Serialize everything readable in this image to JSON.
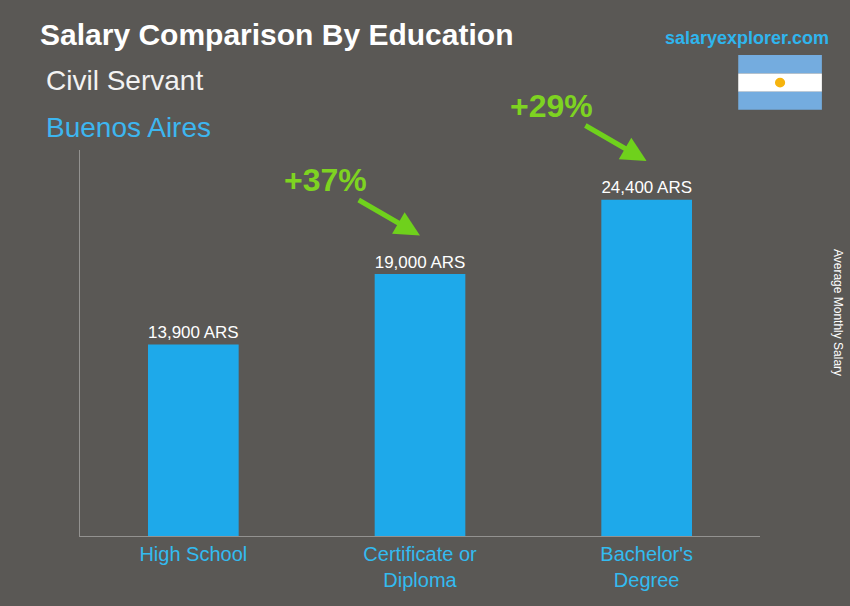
{
  "chart_data": {
    "type": "bar",
    "title": "Salary Comparison By Education",
    "subtitle": "Civil Servant",
    "location": "Buenos Aires",
    "watermark": "salaryexplorer.com",
    "y_label": "Average Monthly Salary",
    "categories": [
      "High School",
      "Certificate or Diploma",
      "Bachelor's Degree"
    ],
    "values": [
      13900,
      19000,
      24400
    ],
    "value_labels": [
      "13,900 ARS",
      "19,000 ARS",
      "24,400 ARS"
    ],
    "data_labels": true,
    "color": "#1ea9ea",
    "ylim": [
      0,
      28000
    ],
    "tick_labels": "x",
    "grid": false,
    "annotations": [
      {
        "text": "+37%",
        "from": "High School",
        "to": "Certificate or Diploma"
      },
      {
        "text": "+29%",
        "from": "Certificate or Diploma",
        "to": "Bachelor's Degree"
      }
    ]
  }
}
